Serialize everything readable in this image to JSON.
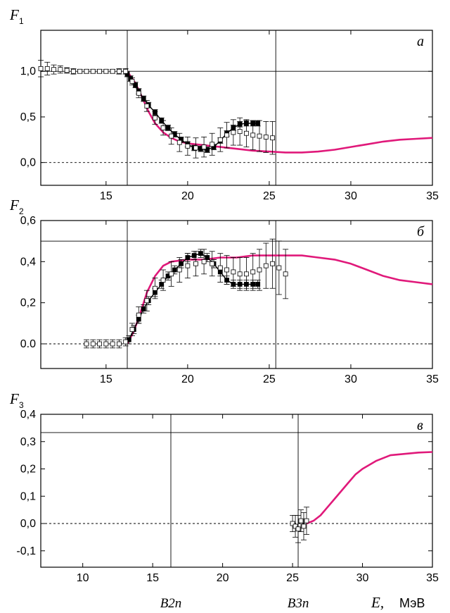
{
  "chart_data": [
    {
      "type": "line",
      "panel_label": "a",
      "ylabel": "F",
      "ylabel_sub": "1",
      "xlim": [
        11,
        35
      ],
      "ylim": [
        -0.25,
        1.45
      ],
      "xticks": [
        15,
        20,
        25,
        30,
        35
      ],
      "yticks": [
        0.0,
        0.5,
        1.0
      ],
      "ytick_labels": [
        "0,0",
        "0,5",
        "1,0"
      ],
      "hlines": [
        {
          "y": 1.0,
          "style": "solid"
        },
        {
          "y": 0.0,
          "style": "dashed"
        }
      ],
      "vlines": [
        16.3,
        25.4
      ],
      "series": [
        {
          "style": "line",
          "color": "#e0197a",
          "x": [
            16.3,
            16.8,
            17.2,
            17.6,
            18.0,
            18.5,
            19.0,
            19.5,
            20.0,
            21.0,
            22.0,
            23.0,
            24.0,
            25.0,
            26.0,
            27.0,
            28.0,
            29.0,
            30.0,
            31.0,
            32.0,
            33.0,
            34.0,
            35.0
          ],
          "y": [
            1.0,
            0.87,
            0.72,
            0.56,
            0.43,
            0.33,
            0.27,
            0.23,
            0.21,
            0.19,
            0.17,
            0.15,
            0.13,
            0.12,
            0.11,
            0.11,
            0.12,
            0.14,
            0.17,
            0.2,
            0.23,
            0.25,
            0.26,
            0.27
          ]
        },
        {
          "style": "filled-squares",
          "color": "#000000",
          "x": [
            16.3,
            16.5,
            16.8,
            17.0,
            17.3,
            17.6,
            18.0,
            18.4,
            18.8,
            19.2,
            19.6,
            20.0,
            20.4,
            20.8,
            21.2,
            21.6,
            22.0,
            22.4,
            22.8,
            23.2,
            23.6,
            24.0,
            24.3
          ],
          "y": [
            0.97,
            0.92,
            0.85,
            0.78,
            0.7,
            0.63,
            0.55,
            0.46,
            0.38,
            0.31,
            0.25,
            0.2,
            0.16,
            0.15,
            0.14,
            0.17,
            0.24,
            0.32,
            0.38,
            0.42,
            0.43,
            0.43,
            0.43
          ],
          "err": 0.03
        },
        {
          "style": "open-squares",
          "color": "#000000",
          "x": [
            11.0,
            11.4,
            11.8,
            12.2,
            12.6,
            13.0,
            13.4,
            13.8,
            14.2,
            14.6,
            15.0,
            15.4,
            15.8,
            16.2,
            16.6,
            17.0,
            17.5,
            18.0,
            18.5,
            19.0,
            19.5,
            20.0,
            20.5,
            21.0,
            21.5,
            22.0,
            22.4,
            22.8,
            23.2,
            23.6,
            24.0,
            24.4,
            24.8,
            25.2
          ],
          "y": [
            1.03,
            1.03,
            1.02,
            1.02,
            1.01,
            1.0,
            1.0,
            1.0,
            1.0,
            1.0,
            1.0,
            1.0,
            1.0,
            1.0,
            0.89,
            0.76,
            0.62,
            0.49,
            0.38,
            0.29,
            0.22,
            0.18,
            0.16,
            0.17,
            0.2,
            0.25,
            0.3,
            0.33,
            0.34,
            0.32,
            0.3,
            0.29,
            0.28,
            0.27
          ],
          "err": [
            0.09,
            0.07,
            0.05,
            0.04,
            0.03,
            0.03,
            0.02,
            0.02,
            0.02,
            0.02,
            0.02,
            0.02,
            0.03,
            0.03,
            0.04,
            0.05,
            0.06,
            0.07,
            0.08,
            0.09,
            0.1,
            0.1,
            0.11,
            0.11,
            0.12,
            0.13,
            0.14,
            0.14,
            0.15,
            0.15,
            0.16,
            0.17,
            0.17,
            0.18
          ]
        }
      ]
    },
    {
      "type": "line",
      "panel_label": "б",
      "ylabel": "F",
      "ylabel_sub": "2",
      "xlim": [
        11,
        35
      ],
      "ylim": [
        -0.12,
        0.6
      ],
      "xticks": [
        15,
        20,
        25,
        30,
        35
      ],
      "yticks": [
        0.0,
        0.2,
        0.4,
        0.6
      ],
      "ytick_labels": [
        "0.0",
        "0,2",
        "0,4",
        "0,6"
      ],
      "hlines": [
        {
          "y": 0.5,
          "style": "solid"
        },
        {
          "y": 0.0,
          "style": "dashed"
        }
      ],
      "vlines": [
        16.3,
        25.4
      ],
      "series": [
        {
          "style": "line",
          "color": "#e0197a",
          "x": [
            16.3,
            16.7,
            17.1,
            17.5,
            18.0,
            18.5,
            19.0,
            20.0,
            21.0,
            22.0,
            23.0,
            24.0,
            25.0,
            26.0,
            27.0,
            28.0,
            29.0,
            30.0,
            31.0,
            32.0,
            33.0,
            34.0,
            35.0
          ],
          "y": [
            0.0,
            0.06,
            0.15,
            0.25,
            0.33,
            0.38,
            0.4,
            0.41,
            0.41,
            0.42,
            0.42,
            0.43,
            0.43,
            0.43,
            0.43,
            0.42,
            0.41,
            0.39,
            0.36,
            0.33,
            0.31,
            0.3,
            0.29
          ]
        },
        {
          "style": "filled-squares",
          "color": "#000000",
          "x": [
            16.4,
            16.7,
            17.0,
            17.3,
            17.6,
            18.0,
            18.4,
            18.8,
            19.2,
            19.6,
            20.0,
            20.4,
            20.8,
            21.2,
            21.6,
            22.0,
            22.4,
            22.8,
            23.2,
            23.6,
            24.0,
            24.3
          ],
          "y": [
            0.02,
            0.07,
            0.12,
            0.17,
            0.21,
            0.25,
            0.29,
            0.33,
            0.36,
            0.39,
            0.42,
            0.43,
            0.44,
            0.42,
            0.39,
            0.35,
            0.31,
            0.29,
            0.29,
            0.29,
            0.29,
            0.29
          ],
          "err": 0.02
        },
        {
          "style": "open-squares",
          "color": "#000000",
          "x": [
            13.8,
            14.2,
            14.6,
            15.0,
            15.4,
            15.8,
            16.2,
            16.6,
            17.0,
            17.5,
            18.0,
            18.5,
            19.0,
            19.5,
            20.0,
            20.5,
            21.0,
            21.5,
            22.0,
            22.4,
            22.8,
            23.2,
            23.6,
            24.0,
            24.4,
            24.8,
            25.2,
            25.6,
            26.0
          ],
          "y": [
            0.0,
            0.0,
            0.0,
            0.0,
            0.0,
            0.0,
            0.01,
            0.07,
            0.14,
            0.21,
            0.27,
            0.31,
            0.34,
            0.36,
            0.38,
            0.39,
            0.4,
            0.39,
            0.37,
            0.36,
            0.35,
            0.34,
            0.34,
            0.35,
            0.36,
            0.38,
            0.39,
            0.37,
            0.34
          ],
          "err": [
            0.02,
            0.02,
            0.02,
            0.02,
            0.02,
            0.02,
            0.02,
            0.03,
            0.04,
            0.05,
            0.05,
            0.05,
            0.06,
            0.06,
            0.06,
            0.06,
            0.06,
            0.06,
            0.07,
            0.07,
            0.07,
            0.08,
            0.08,
            0.09,
            0.1,
            0.11,
            0.12,
            0.13,
            0.12
          ]
        }
      ]
    },
    {
      "type": "line",
      "panel_label": "в",
      "ylabel": "F",
      "ylabel_sub": "3",
      "xlabel": "E,",
      "xlabel_unit": "МэВ",
      "xlim": [
        7,
        35
      ],
      "ylim": [
        -0.16,
        0.4
      ],
      "xticks": [
        10,
        15,
        20,
        25,
        30,
        35
      ],
      "yticks": [
        -0.1,
        0.0,
        0.1,
        0.2,
        0.3,
        0.4
      ],
      "ytick_labels": [
        "-0,1",
        "0,0",
        "0,1",
        "0,2",
        "0,3",
        "0,4"
      ],
      "hlines": [
        {
          "y": 0.333,
          "style": "solid"
        },
        {
          "y": 0.0,
          "style": "dashed"
        }
      ],
      "vlines": [
        16.3,
        25.4
      ],
      "vline_labels": [
        "B2n",
        "B3n"
      ],
      "series": [
        {
          "style": "line",
          "color": "#e0197a",
          "x": [
            26.0,
            26.5,
            27.0,
            27.5,
            28.0,
            28.5,
            29.0,
            29.5,
            30.0,
            31.0,
            32.0,
            33.0,
            34.0,
            35.0
          ],
          "y": [
            0.0,
            0.01,
            0.03,
            0.06,
            0.09,
            0.12,
            0.15,
            0.18,
            0.2,
            0.23,
            0.25,
            0.255,
            0.26,
            0.262
          ],
          "err": 0
        },
        {
          "style": "open-squares",
          "color": "#000000",
          "x": [
            25.0,
            25.2,
            25.4,
            25.6,
            25.8,
            26.0
          ],
          "y": [
            0.0,
            -0.01,
            -0.02,
            0.01,
            -0.01,
            0.01
          ],
          "err": [
            0.03,
            0.04,
            0.05,
            0.04,
            0.05,
            0.05
          ]
        }
      ]
    }
  ]
}
